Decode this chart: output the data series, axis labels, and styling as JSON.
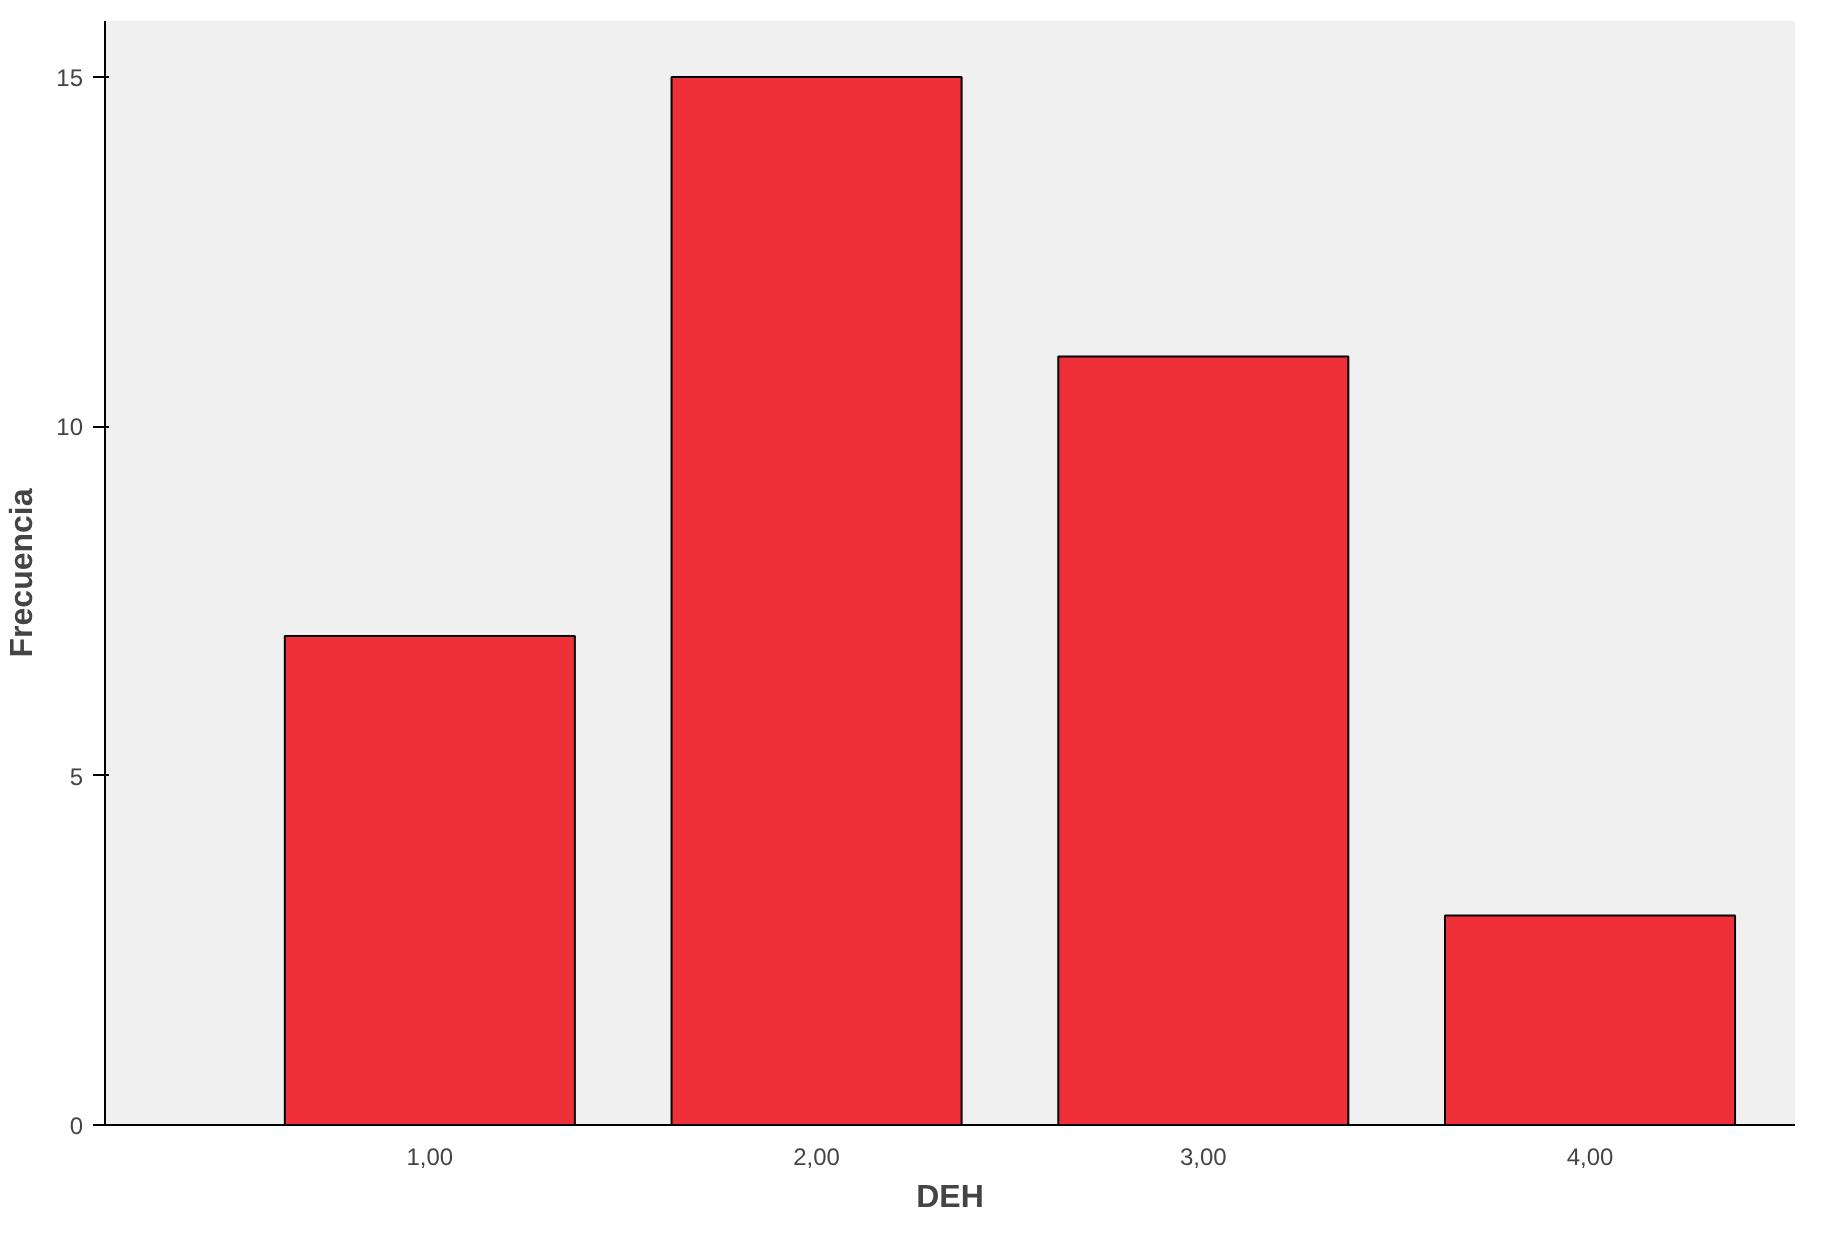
{
  "chart_data": {
    "type": "bar",
    "xlabel": "DEH",
    "ylabel": "Frecuencia",
    "categories": [
      "1,00",
      "2,00",
      "3,00",
      "4,00"
    ],
    "values": [
      7,
      15,
      11,
      3
    ],
    "color": "#ef3038",
    "ylim": [
      0,
      15.8
    ],
    "yticks": [
      0,
      5,
      10,
      15
    ]
  }
}
